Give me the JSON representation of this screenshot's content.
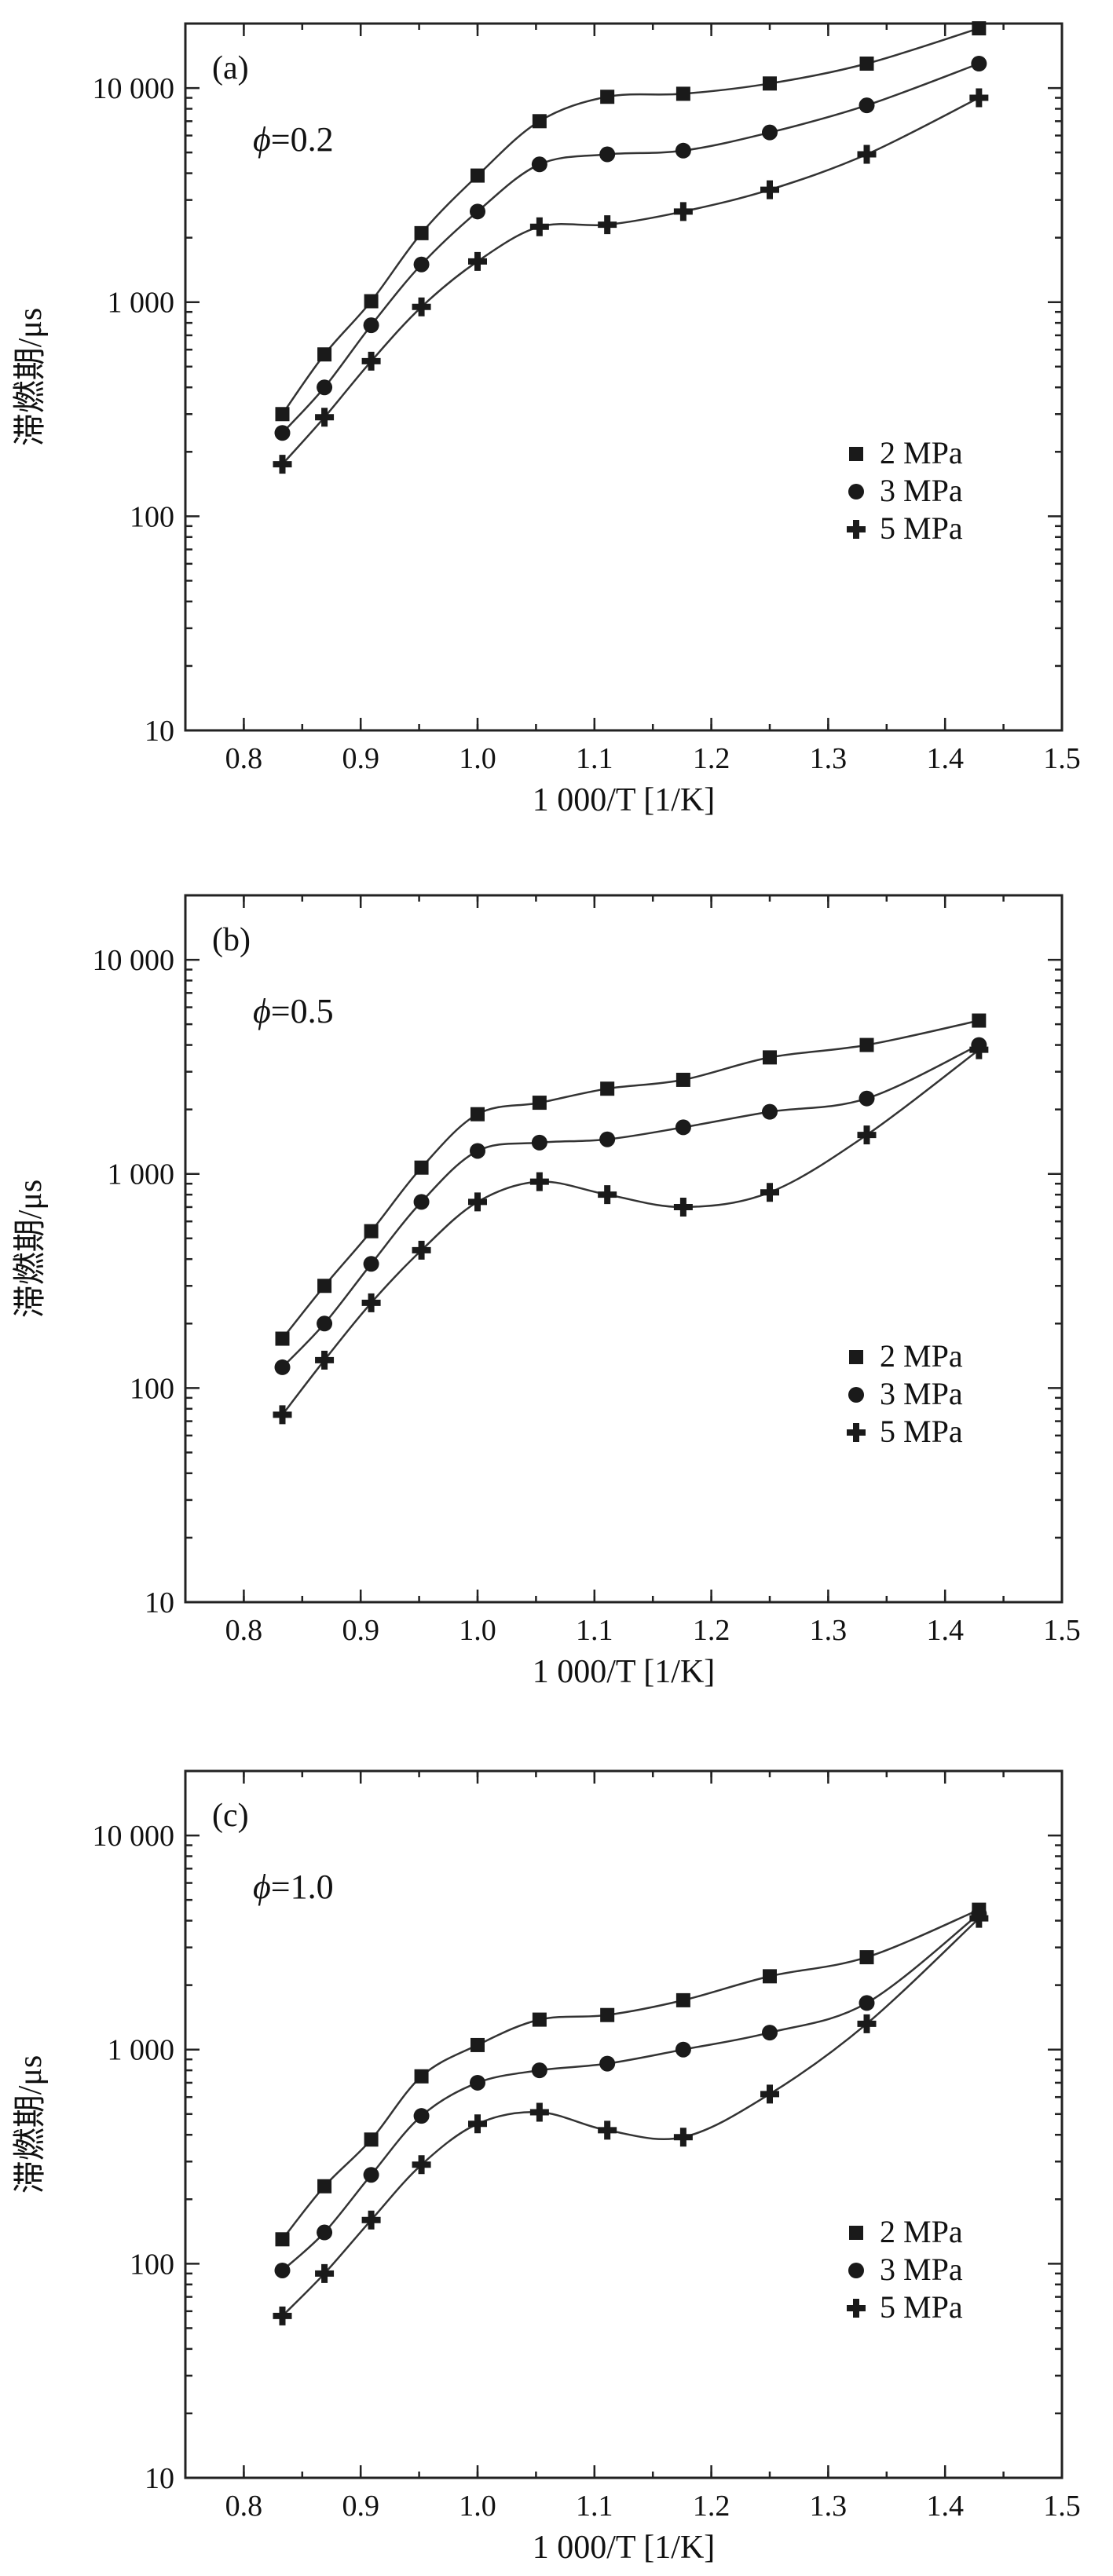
{
  "chart_data": [
    {
      "type": "line",
      "panel_label": "(a)",
      "phi_symbol": "ϕ",
      "phi_value": "=0.2",
      "xlabel": "1 000/T [1/K]",
      "ylabel": "滞燃期/μs",
      "y_scale": "log",
      "xlim": [
        0.75,
        1.5
      ],
      "ylim": [
        10,
        20000
      ],
      "x_tick_values": [
        0.8,
        0.9,
        1.0,
        1.1,
        1.2,
        1.3,
        1.4,
        1.5
      ],
      "x_tick_labels": [
        "0.8",
        "0.9",
        "1.0",
        "1.1",
        "1.2",
        "1.3",
        "1.4",
        "1.5"
      ],
      "y_tick_values": [
        10,
        100,
        1000,
        10000
      ],
      "y_tick_labels": [
        "10",
        "100",
        "1 000",
        "10 000"
      ],
      "legend_position": "middle-right",
      "x": [
        0.833,
        0.869,
        0.909,
        0.952,
        1.0,
        1.053,
        1.111,
        1.176,
        1.25,
        1.333,
        1.429
      ],
      "series": [
        {
          "name": "2 MPa",
          "marker": "square",
          "values": [
            300,
            570,
            1010,
            2100,
            3900,
            7000,
            9100,
            9400,
            10500,
            13000,
            19000
          ]
        },
        {
          "name": "3 MPa",
          "marker": "circle",
          "values": [
            245,
            400,
            780,
            1500,
            2650,
            4400,
            4900,
            5100,
            6200,
            8300,
            13000
          ]
        },
        {
          "name": "5 MPa",
          "marker": "diamond",
          "values": [
            175,
            290,
            530,
            950,
            1550,
            2250,
            2300,
            2650,
            3350,
            4900,
            9000
          ]
        }
      ]
    },
    {
      "type": "line",
      "panel_label": "(b)",
      "phi_symbol": "ϕ",
      "phi_value": "=0.5",
      "xlabel": "1 000/T [1/K]",
      "ylabel": "滞燃期/μs",
      "y_scale": "log",
      "xlim": [
        0.75,
        1.5
      ],
      "ylim": [
        10,
        20000
      ],
      "x_tick_values": [
        0.8,
        0.9,
        1.0,
        1.1,
        1.2,
        1.3,
        1.4,
        1.5
      ],
      "x_tick_labels": [
        "0.8",
        "0.9",
        "1.0",
        "1.1",
        "1.2",
        "1.3",
        "1.4",
        "1.5"
      ],
      "y_tick_values": [
        10,
        100,
        1000,
        10000
      ],
      "y_tick_labels": [
        "10",
        "100",
        "1 000",
        "10 000"
      ],
      "legend_position": "lower-right",
      "x": [
        0.833,
        0.869,
        0.909,
        0.952,
        1.0,
        1.053,
        1.111,
        1.176,
        1.25,
        1.333,
        1.429
      ],
      "series": [
        {
          "name": "2 MPa",
          "marker": "square",
          "values": [
            170,
            300,
            540,
            1070,
            1900,
            2150,
            2500,
            2750,
            3500,
            4000,
            5200
          ]
        },
        {
          "name": "3 MPa",
          "marker": "circle",
          "values": [
            125,
            200,
            380,
            740,
            1280,
            1400,
            1450,
            1650,
            1950,
            2250,
            4000
          ]
        },
        {
          "name": "5 MPa",
          "marker": "diamond",
          "values": [
            75,
            135,
            250,
            440,
            740,
            920,
            800,
            700,
            820,
            1520,
            3800
          ]
        }
      ]
    },
    {
      "type": "line",
      "panel_label": "(c)",
      "phi_symbol": "ϕ",
      "phi_value": "=1.0",
      "xlabel": "1 000/T [1/K]",
      "ylabel": "滞燃期/μs",
      "y_scale": "log",
      "xlim": [
        0.75,
        1.5
      ],
      "ylim": [
        10,
        20000
      ],
      "x_tick_values": [
        0.8,
        0.9,
        1.0,
        1.1,
        1.2,
        1.3,
        1.4,
        1.5
      ],
      "x_tick_labels": [
        "0.8",
        "0.9",
        "1.0",
        "1.1",
        "1.2",
        "1.3",
        "1.4",
        "1.5"
      ],
      "y_tick_values": [
        10,
        100,
        1000,
        10000
      ],
      "y_tick_labels": [
        "10",
        "100",
        "1 000",
        "10 000"
      ],
      "legend_position": "lower-right",
      "x": [
        0.833,
        0.869,
        0.909,
        0.952,
        1.0,
        1.053,
        1.111,
        1.176,
        1.25,
        1.333,
        1.429
      ],
      "series": [
        {
          "name": "2 MPa",
          "marker": "square",
          "values": [
            130,
            230,
            380,
            750,
            1050,
            1380,
            1450,
            1700,
            2200,
            2700,
            4500
          ]
        },
        {
          "name": "3 MPa",
          "marker": "circle",
          "values": [
            93,
            140,
            260,
            490,
            700,
            800,
            860,
            1000,
            1200,
            1650,
            4300
          ]
        },
        {
          "name": "5 MPa",
          "marker": "diamond",
          "values": [
            57,
            90,
            160,
            290,
            450,
            510,
            420,
            390,
            620,
            1320,
            4100
          ]
        }
      ]
    }
  ]
}
